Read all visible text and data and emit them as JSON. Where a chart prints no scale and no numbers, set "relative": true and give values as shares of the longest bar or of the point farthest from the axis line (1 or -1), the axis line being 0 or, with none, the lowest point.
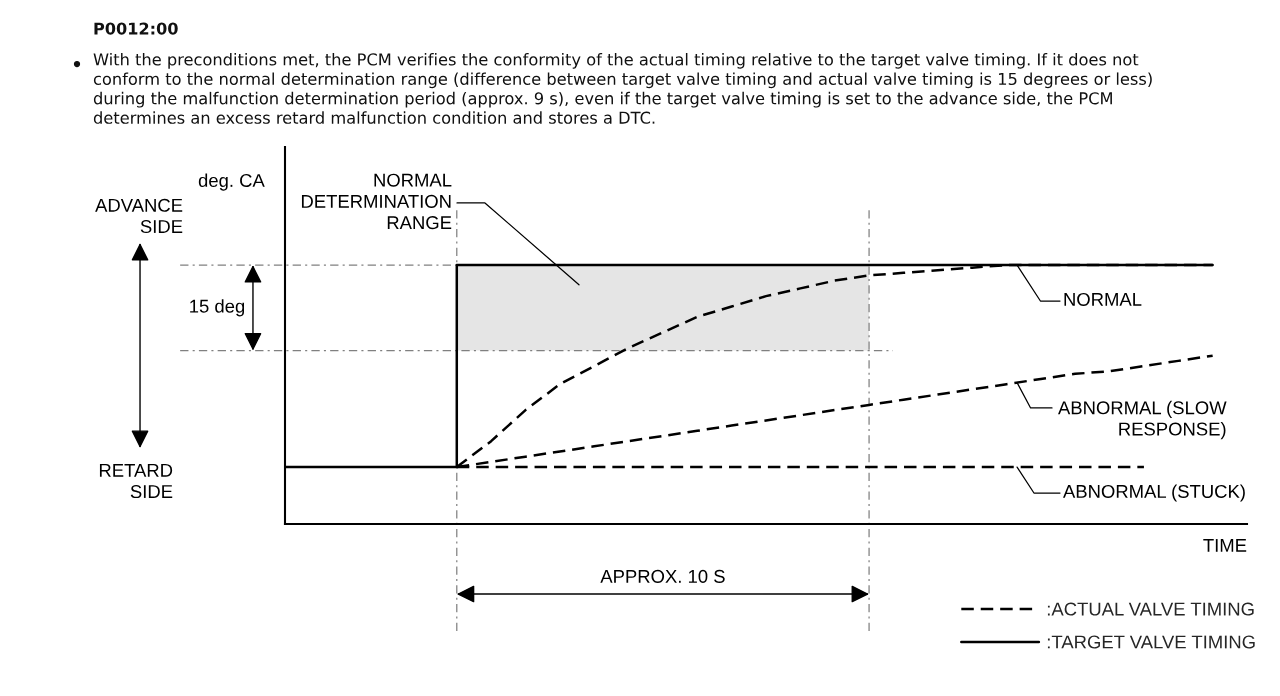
{
  "chart_data": {
    "type": "line",
    "title": "P0012:00",
    "subtitle": "With the preconditions met, the PCM verifies the conformity of the actual timing relative to the target valve timing. If it does not\nconform to the normal determination range (difference between target valve timing and actual valve timing is 15 degrees or less)\nduring the malfunction determination period (approx. 9 s), even if the target valve timing is set to the advance side, the PCM\ndetermines an excess retard malfunction condition and stores a DTC.",
    "xlabel": "TIME",
    "ylabel": "deg. CA",
    "relative": true,
    "legend": "bottom right",
    "categories": [
      null,
      null,
      null,
      null,
      null,
      null,
      null,
      null,
      null,
      null,
      null,
      null,
      null,
      null,
      null,
      null,
      null,
      null,
      null,
      null,
      null,
      null,
      null,
      null,
      null,
      null,
      null,
      null
    ],
    "series": [
      {
        "name": ":ACTUAL VALVE TIMING",
        "type": "line",
        "line_style": "dashed",
        "color": "#000000",
        "values": [
          null,
          null,
          null,
          null,
          null,
          0.22,
          0.32,
          0.44,
          0.54,
          0.61,
          0.68,
          0.74,
          0.8,
          0.84,
          0.88,
          0.91,
          0.94,
          0.96,
          0.97,
          0.98,
          0.99,
          1.0,
          1.0,
          1.0,
          1.0,
          1.0,
          1.0,
          1.0
        ]
      },
      {
        "type": "line",
        "line_style": "dashed",
        "color": "#000000",
        "values": [
          null,
          null,
          null,
          null,
          null,
          0.22,
          0.24,
          0.26,
          0.28,
          0.3,
          0.32,
          0.34,
          0.36,
          0.38,
          0.4,
          0.42,
          0.44,
          0.46,
          0.48,
          0.5,
          0.52,
          0.54,
          0.56,
          0.58,
          0.59,
          0.61,
          0.63,
          0.65
        ]
      },
      {
        "type": "line",
        "line_style": "dashed",
        "color": "#000000",
        "values": [
          null,
          null,
          null,
          null,
          null,
          0.22,
          0.22,
          0.22,
          0.22,
          0.22,
          0.22,
          0.22,
          0.22,
          0.22,
          0.22,
          0.22,
          0.22,
          0.22,
          0.22,
          0.22,
          0.22,
          0.22,
          0.22,
          0.22,
          0.22,
          0.22,
          null,
          null
        ]
      },
      {
        "name": ":TARGET VALVE TIMING",
        "type": "step",
        "line_style": "solid",
        "color": "#000000",
        "values": [
          0.22,
          0.22,
          0.22,
          0.22,
          0.22,
          1.0,
          1.0,
          1.0,
          1.0,
          1.0,
          1.0,
          1.0,
          1.0,
          1.0,
          1.0,
          1.0,
          1.0,
          1.0,
          1.0,
          1.0,
          1.0,
          1.0,
          1.0,
          1.0,
          1.0,
          1.0,
          1.0,
          1.0
        ],
        "lower": [
          null,
          null,
          null,
          null,
          null,
          0.67,
          0.67,
          0.67,
          0.67,
          0.67,
          0.67,
          0.67,
          0.67,
          0.67,
          0.67,
          0.67,
          0.67,
          0.67,
          null,
          null,
          null,
          null,
          null,
          null,
          null,
          null,
          null,
          null
        ],
        "upper": [
          null,
          null,
          null,
          null,
          null,
          1.0,
          1.0,
          1.0,
          1.0,
          1.0,
          1.0,
          1.0,
          1.0,
          1.0,
          1.0,
          1.0,
          1.0,
          1.0,
          null,
          null,
          null,
          null,
          null,
          null,
          null,
          null,
          null,
          null
        ]
      }
    ],
    "ref_lines": [
      {
        "axis": "y",
        "value": 1.0,
        "color": "#808080",
        "line_style": "dashdot"
      },
      {
        "axis": "y",
        "value": 0.67,
        "color": "#808080",
        "line_style": "dashdot"
      }
    ],
    "annotations": [
      "NORMAL\nDETERMINATION\nRANGE",
      "NORMAL",
      "ABNORMAL (SLOW\nRESPONSE)",
      "ABNORMAL (STUCK)",
      "15 deg",
      "APPROX. 10 S",
      "ADVANCE\nSIDE",
      "RETARD\nSIDE"
    ]
  }
}
